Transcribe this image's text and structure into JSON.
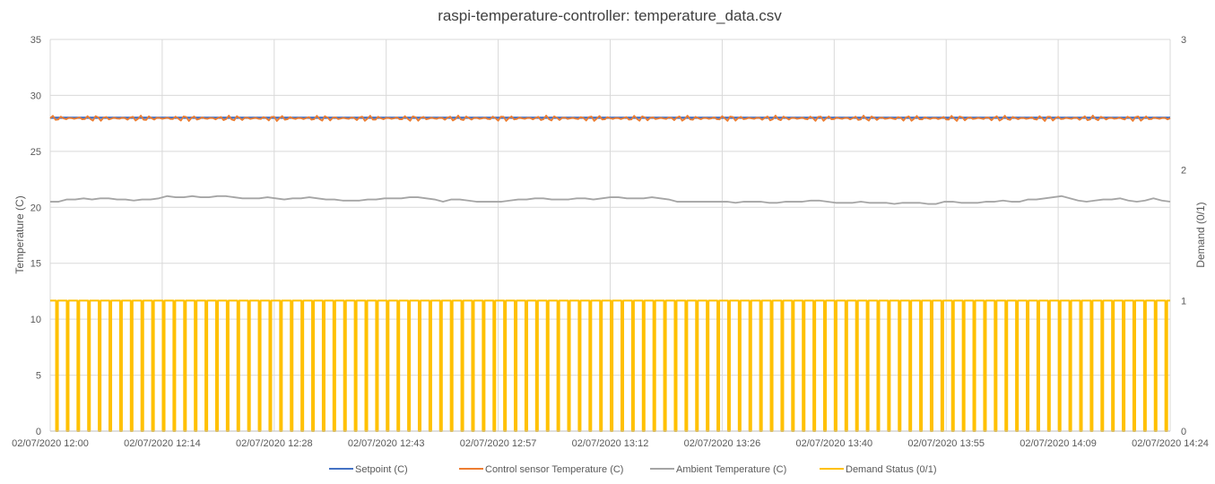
{
  "chart_data": {
    "type": "line",
    "title": "raspi-temperature-controller: temperature_data.csv",
    "ylabel": "Temperature (C)",
    "y2label": "Demand (0/1)",
    "ylim": [
      0,
      35
    ],
    "y2lim": [
      0,
      3
    ],
    "yticks": [
      "0",
      "5",
      "10",
      "15",
      "20",
      "25",
      "30",
      "35"
    ],
    "y2ticks": [
      "0",
      "1",
      "2",
      "3"
    ],
    "grid": true,
    "legend_position": "bottom",
    "x_tick_labels": [
      "02/07/2020 12:00",
      "02/07/2020 12:14",
      "02/07/2020 12:28",
      "02/07/2020 12:43",
      "02/07/2020 12:57",
      "02/07/2020 13:12",
      "02/07/2020 13:26",
      "02/07/2020 13:40",
      "02/07/2020 13:55",
      "02/07/2020 14:09",
      "02/07/2020 14:24"
    ],
    "x_range": [
      "02/07/2020 12:00",
      "02/07/2020 14:24"
    ],
    "series": [
      {
        "name": "Setpoint (C)",
        "color": "#4472C4",
        "axis": "left",
        "pattern": "constant",
        "value": 28
      },
      {
        "name": "Control sensor Temperature (C)",
        "color": "#ED7D31",
        "axis": "left",
        "pattern": "oscillating",
        "min": 27.7,
        "max": 28.2
      },
      {
        "name": "Ambient Temperature (C)",
        "color": "#A5A5A5",
        "axis": "left",
        "pattern": "sampled",
        "values": [
          20.5,
          20.5,
          20.7,
          20.7,
          20.8,
          20.7,
          20.8,
          20.8,
          20.7,
          20.7,
          20.6,
          20.7,
          20.7,
          20.8,
          21.0,
          20.9,
          20.9,
          21.0,
          20.9,
          20.9,
          21.0,
          21.0,
          20.9,
          20.8,
          20.8,
          20.8,
          20.9,
          20.8,
          20.7,
          20.8,
          20.8,
          20.9,
          20.8,
          20.7,
          20.7,
          20.6,
          20.6,
          20.6,
          20.7,
          20.7,
          20.8,
          20.8,
          20.8,
          20.9,
          20.9,
          20.8,
          20.7,
          20.5,
          20.7,
          20.7,
          20.6,
          20.5,
          20.5,
          20.5,
          20.5,
          20.6,
          20.7,
          20.7,
          20.8,
          20.8,
          20.7,
          20.7,
          20.7,
          20.8,
          20.8,
          20.7,
          20.8,
          20.9,
          20.9,
          20.8,
          20.8,
          20.8,
          20.9,
          20.8,
          20.7,
          20.5,
          20.5,
          20.5,
          20.5,
          20.5,
          20.5,
          20.5,
          20.4,
          20.5,
          20.5,
          20.5,
          20.4,
          20.4,
          20.5,
          20.5,
          20.5,
          20.6,
          20.6,
          20.5,
          20.4,
          20.4,
          20.4,
          20.5,
          20.4,
          20.4,
          20.4,
          20.3,
          20.4,
          20.4,
          20.4,
          20.3,
          20.3,
          20.5,
          20.5,
          20.4,
          20.4,
          20.4,
          20.5,
          20.5,
          20.6,
          20.5,
          20.5,
          20.7,
          20.7,
          20.8,
          20.9,
          21.0,
          20.8,
          20.6,
          20.5,
          20.6,
          20.7,
          20.7,
          20.8,
          20.6,
          20.5,
          20.6,
          20.8,
          20.6,
          20.5
        ]
      },
      {
        "name": "Demand Status (0/1)",
        "color": "#FFC000",
        "axis": "right",
        "pattern": "square-wave",
        "low": 0,
        "high": 1,
        "cycles": 105
      }
    ]
  }
}
